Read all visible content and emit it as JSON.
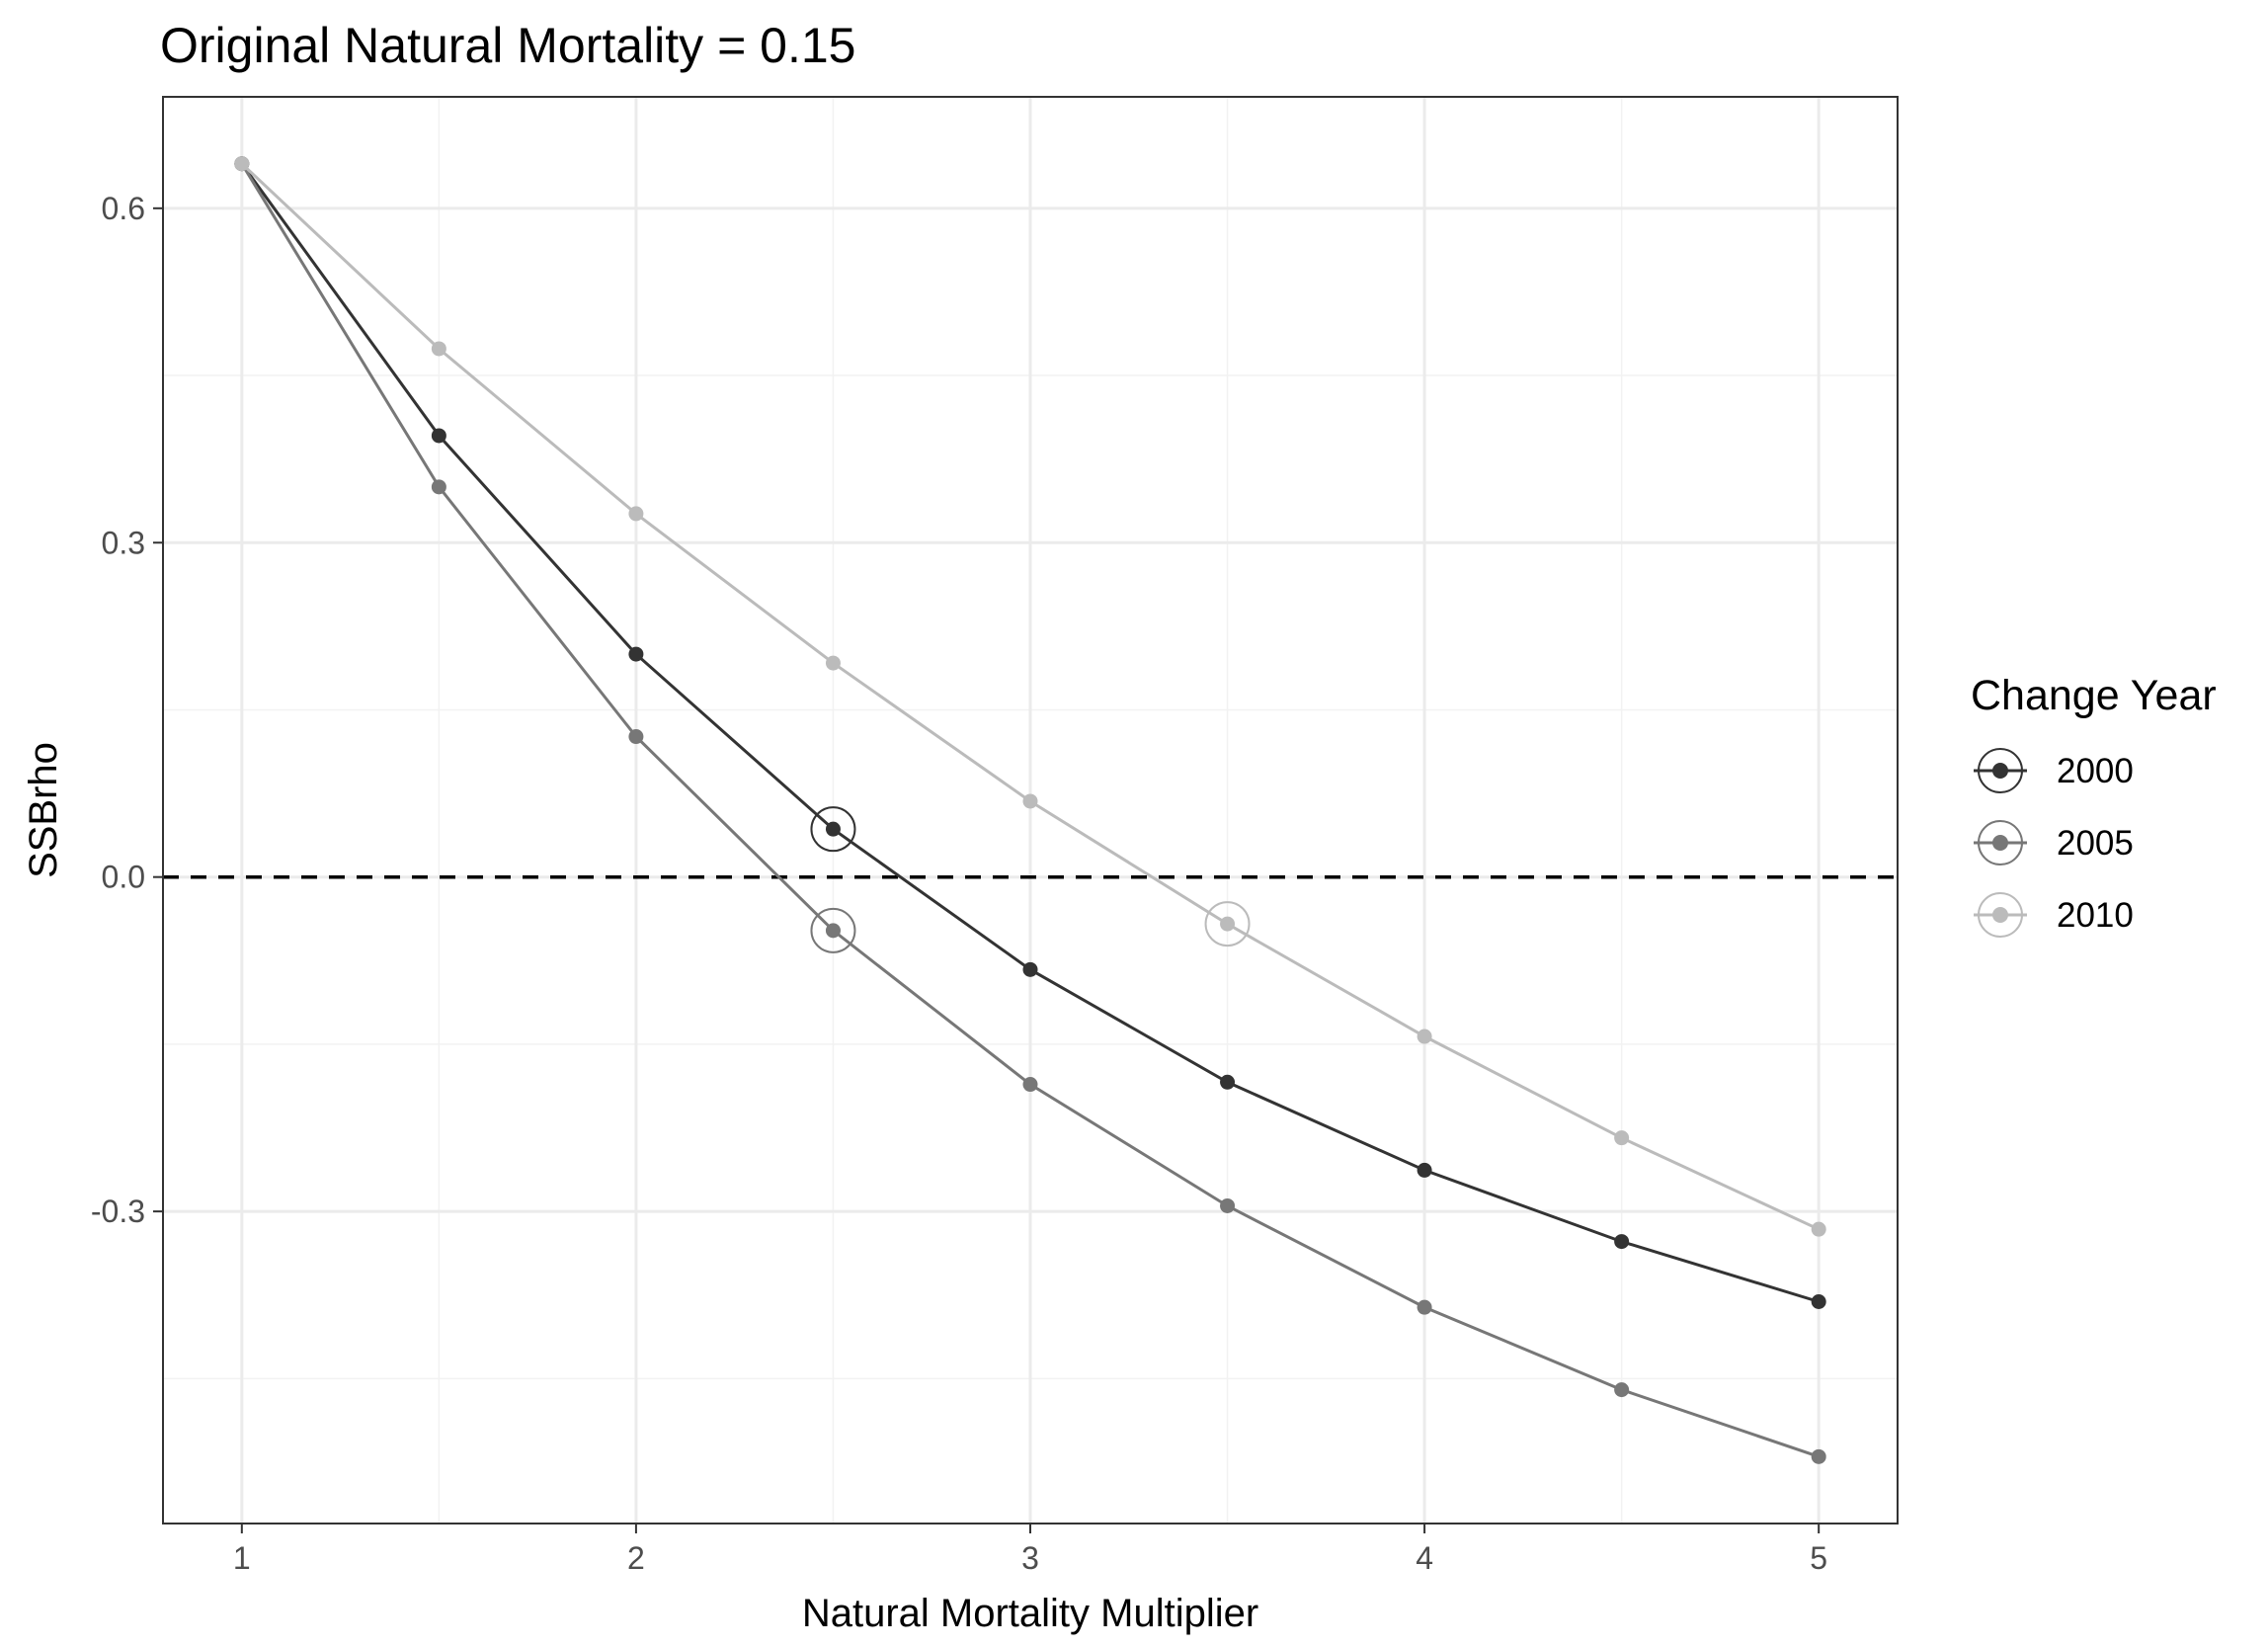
{
  "chart_data": {
    "type": "line",
    "title": "Original Natural Mortality = 0.15",
    "xlabel": "Natural Mortality Multiplier",
    "ylabel": "SSBrho",
    "xlim": [
      0.8,
      5.2
    ],
    "ylim": [
      -0.58,
      0.7
    ],
    "x_ticks": [
      1,
      2,
      3,
      4,
      5
    ],
    "x_tick_labels": [
      "1",
      "2",
      "3",
      "4",
      "5"
    ],
    "y_ticks": [
      -0.3,
      0.0,
      0.3,
      0.6
    ],
    "y_tick_labels": [
      "-0.3",
      "0.0",
      "0.3",
      "0.6"
    ],
    "x_minor": [
      1.5,
      2.5,
      3.5,
      4.5
    ],
    "y_minor": [
      -0.45,
      -0.15,
      0.15,
      0.45
    ],
    "grid": true,
    "reference_line": {
      "y": 0.0,
      "style": "dashed",
      "color": "#000000"
    },
    "legend": {
      "title": "Change Year",
      "position": "right"
    },
    "x": [
      1,
      1.5,
      2,
      2.5,
      3,
      3.5,
      4,
      4.5,
      5
    ],
    "series": [
      {
        "name": "2000",
        "color": "#333333",
        "values": [
          0.64,
          0.396,
          0.2,
          0.043,
          -0.083,
          -0.184,
          -0.263,
          -0.327,
          -0.381
        ],
        "highlight_index": 3
      },
      {
        "name": "2005",
        "color": "#777777",
        "values": [
          0.64,
          0.35,
          0.126,
          -0.048,
          -0.186,
          -0.295,
          -0.386,
          -0.46,
          -0.52
        ],
        "highlight_index": 3
      },
      {
        "name": "2010",
        "color": "#bbbbbb",
        "values": [
          0.64,
          0.474,
          0.326,
          0.192,
          0.068,
          -0.042,
          -0.143,
          -0.234,
          -0.316
        ],
        "highlight_index": 5
      }
    ]
  }
}
